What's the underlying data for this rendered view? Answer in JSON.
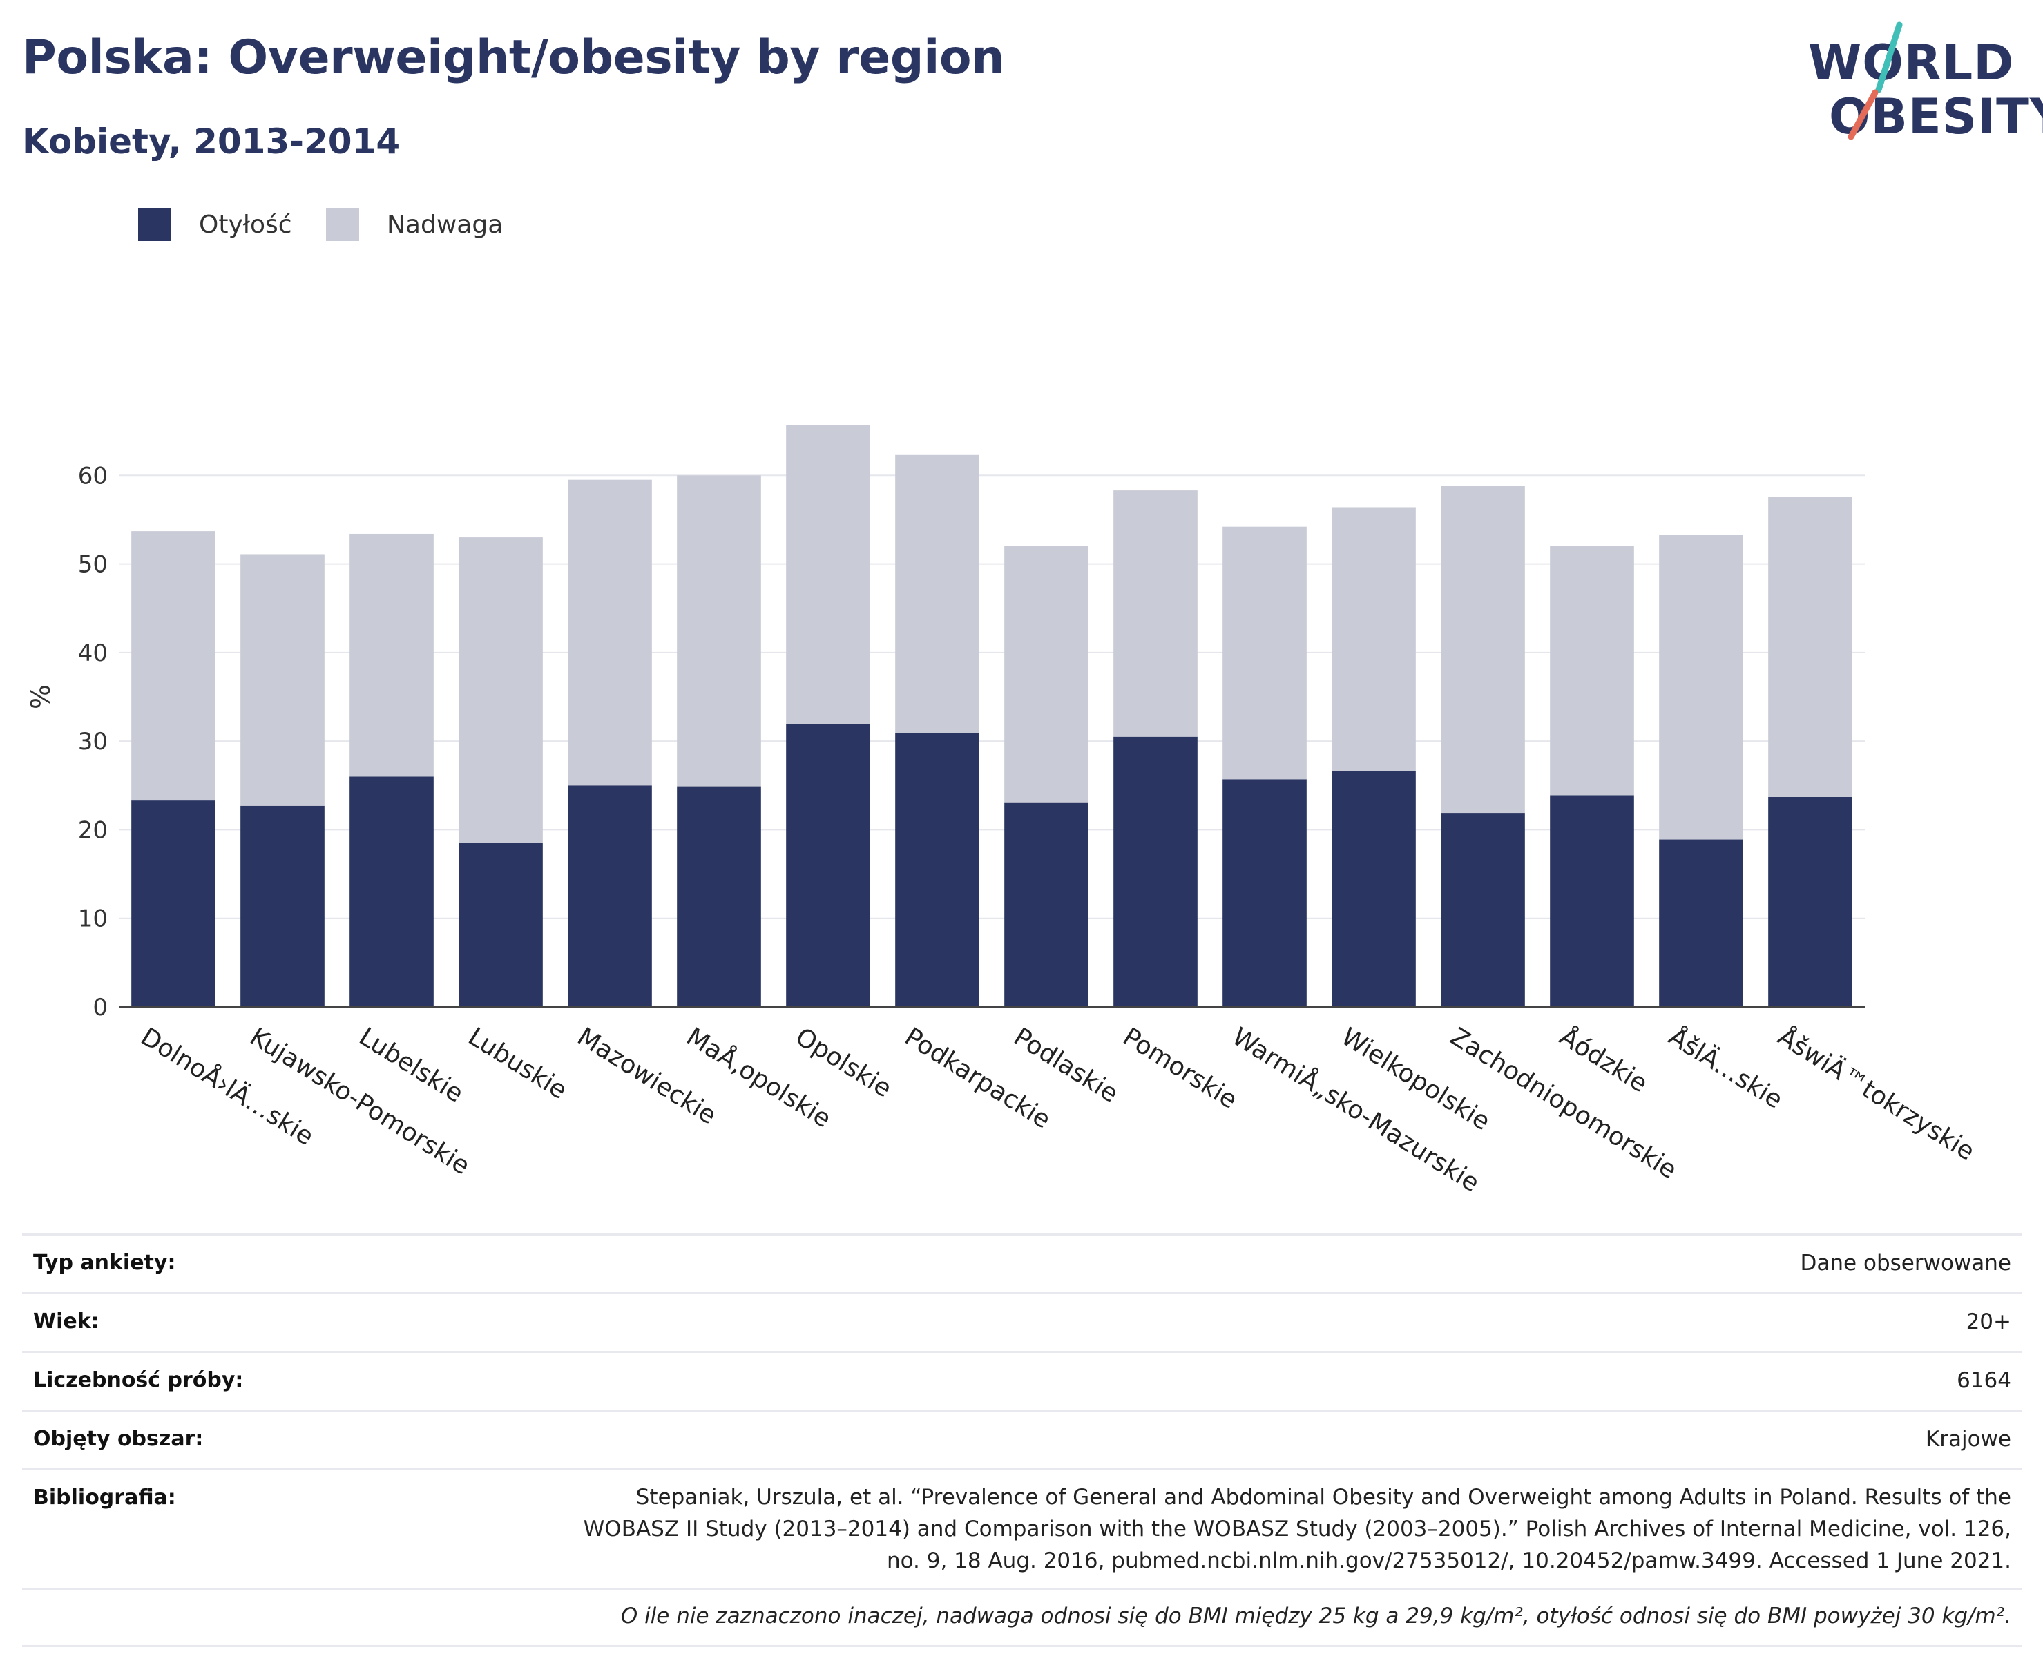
{
  "header": {
    "title": "Polska: Overweight/obesity by region",
    "subtitle": "Kobiety, 2013-2014"
  },
  "logo": {
    "line1": "WORLD",
    "line2": "OBESITY",
    "colors": {
      "text": "#2a3561",
      "teal": "#3fbfb7",
      "coral": "#e36b57"
    }
  },
  "legend": {
    "items": [
      {
        "label": "Otyłość",
        "color": "#2a3561"
      },
      {
        "label": "Nadwaga",
        "color": "#c9cbd6"
      }
    ]
  },
  "chart_data": {
    "type": "bar",
    "stacked": true,
    "ylabel": "%",
    "ylim": [
      0,
      70
    ],
    "yticks": [
      0,
      10,
      20,
      30,
      40,
      50,
      60
    ],
    "grid": true,
    "legend_position": "top-left",
    "categories": [
      "DolnoÅ›lÄ…skie",
      "Kujawsko-Pomorskie",
      "Lubelskie",
      "Lubuskie",
      "Mazowieckie",
      "MaÅ‚opolskie",
      "Opolskie",
      "Podkarpackie",
      "Podlaskie",
      "Pomorskie",
      "WarmiÅ„sko-Mazurskie",
      "Wielkopolskie",
      "Zachodniopomorskie",
      "Åódzkie",
      "ÅšlÄ…skie",
      "ÅšwiÄ™tokrzyskie"
    ],
    "series": [
      {
        "name": "Otyłość",
        "color": "#2a3561",
        "values": [
          23.3,
          22.7,
          26.0,
          18.5,
          25.0,
          24.9,
          31.9,
          30.9,
          23.1,
          30.5,
          25.7,
          26.6,
          21.9,
          23.9,
          18.9,
          23.7
        ]
      },
      {
        "name": "Nadwaga",
        "color": "#c9cbd6",
        "values": [
          30.4,
          28.4,
          27.4,
          34.5,
          34.5,
          35.1,
          33.8,
          31.4,
          28.9,
          27.8,
          28.5,
          29.8,
          36.9,
          28.1,
          34.4,
          33.9
        ]
      }
    ]
  },
  "details": {
    "rows": [
      {
        "label": "Typ ankiety:",
        "value": "Dane obserwowane"
      },
      {
        "label": "Wiek:",
        "value": "20+"
      },
      {
        "label": "Liczebność próby:",
        "value": "6164"
      },
      {
        "label": "Objęty obszar:",
        "value": "Krajowe"
      }
    ],
    "bibliography_label": "Bibliografia:",
    "bibliography_lines": [
      "Stepaniak, Urszula, et al. “Prevalence of General and Abdominal Obesity and Overweight among Adults in Poland. Results of the",
      "WOBASZ II Study (2013–2014) and Comparison with the WOBASZ Study (2003–2005).” Polish Archives of Internal Medicine, vol. 126,",
      "no. 9, 18 Aug. 2016, pubmed.ncbi.nlm.nih.gov/27535012/, 10.20452/pamw.3499. Accessed 1 June 2021."
    ],
    "footnote": "O ile nie zaznaczono inaczej, nadwaga odnosi się do BMI między 25 kg a 29,9 kg/m², otyłość odnosi się do BMI powyżej 30 kg/m²."
  }
}
